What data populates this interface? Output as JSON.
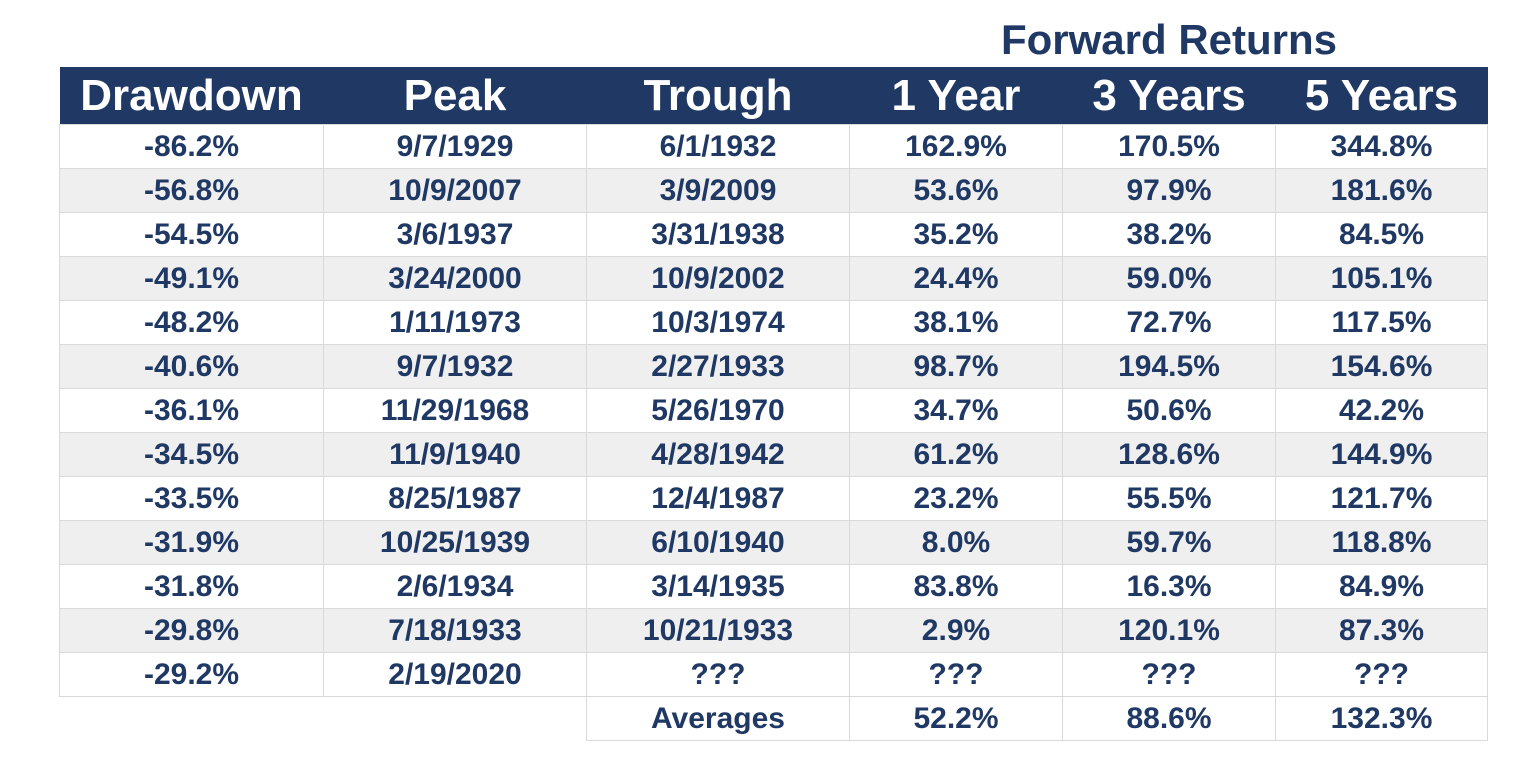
{
  "header_group": "Forward Returns",
  "columns": [
    "Drawdown",
    "Peak",
    "Trough",
    "1 Year",
    "3 Years",
    "5 Years"
  ],
  "rows": [
    [
      "-86.2%",
      "9/7/1929",
      "6/1/1932",
      "162.9%",
      "170.5%",
      "344.8%"
    ],
    [
      "-56.8%",
      "10/9/2007",
      "3/9/2009",
      "53.6%",
      "97.9%",
      "181.6%"
    ],
    [
      "-54.5%",
      "3/6/1937",
      "3/31/1938",
      "35.2%",
      "38.2%",
      "84.5%"
    ],
    [
      "-49.1%",
      "3/24/2000",
      "10/9/2002",
      "24.4%",
      "59.0%",
      "105.1%"
    ],
    [
      "-48.2%",
      "1/11/1973",
      "10/3/1974",
      "38.1%",
      "72.7%",
      "117.5%"
    ],
    [
      "-40.6%",
      "9/7/1932",
      "2/27/1933",
      "98.7%",
      "194.5%",
      "154.6%"
    ],
    [
      "-36.1%",
      "11/29/1968",
      "5/26/1970",
      "34.7%",
      "50.6%",
      "42.2%"
    ],
    [
      "-34.5%",
      "11/9/1940",
      "4/28/1942",
      "61.2%",
      "128.6%",
      "144.9%"
    ],
    [
      "-33.5%",
      "8/25/1987",
      "12/4/1987",
      "23.2%",
      "55.5%",
      "121.7%"
    ],
    [
      "-31.9%",
      "10/25/1939",
      "6/10/1940",
      "8.0%",
      "59.7%",
      "118.8%"
    ],
    [
      "-31.8%",
      "2/6/1934",
      "3/14/1935",
      "83.8%",
      "16.3%",
      "84.9%"
    ],
    [
      "-29.8%",
      "7/18/1933",
      "10/21/1933",
      "2.9%",
      "120.1%",
      "87.3%"
    ],
    [
      "-29.2%",
      "2/19/2020",
      "???",
      "???",
      "???",
      "???"
    ]
  ],
  "averages": {
    "label": "Averages",
    "one_year": "52.2%",
    "three_years": "88.6%",
    "five_years": "132.3%"
  },
  "colors": {
    "header_bg": "#1f3864",
    "header_text": "#ffffff",
    "body_text": "#1f3864",
    "row_shade": "#efefef",
    "grid": "#d9d9d9"
  }
}
